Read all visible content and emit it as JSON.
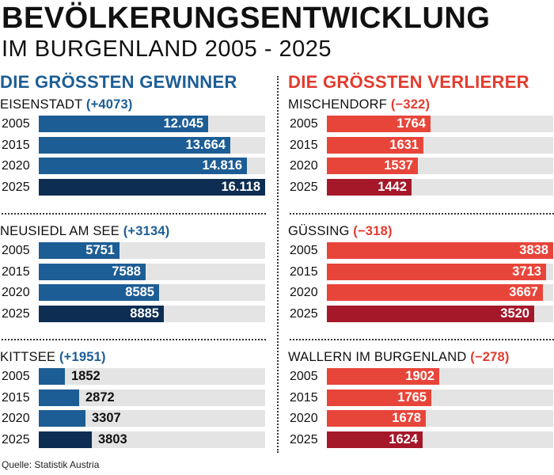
{
  "title": "BEVÖLKERUNGSENTWICKLUNG",
  "subtitle": "IM BURGENLAND 2005 - 2025",
  "source": "Quelle: Statistik Austria",
  "colors": {
    "gain_light": "#1d5d95",
    "gain_dark": "#0d2d52",
    "loss_light": "#e8453a",
    "loss_dark": "#a5182a",
    "track": "#e4e4e4"
  },
  "chart_data": [
    {
      "type": "bar",
      "panel": "left",
      "title": "DIE GRÖSSTEN GEWINNER",
      "groups": [
        {
          "name": "EISENSTADT",
          "delta": "(+4073)",
          "categories": [
            "2005",
            "2015",
            "2020",
            "2025"
          ],
          "values": [
            12045,
            13664,
            14816,
            16118
          ],
          "labels": [
            "12.045",
            "13.664",
            "14.816",
            "16.118"
          ],
          "xlim": [
            0,
            16118
          ]
        },
        {
          "name": "NEUSIEDL AM SEE",
          "delta": "(+3134)",
          "categories": [
            "2005",
            "2015",
            "2020",
            "2025"
          ],
          "values": [
            5751,
            7588,
            8585,
            8885
          ],
          "labels": [
            "5751",
            "7588",
            "8585",
            "8885"
          ],
          "xlim": [
            0,
            16118
          ]
        },
        {
          "name": "KITTSEE",
          "delta": "(+1951)",
          "categories": [
            "2005",
            "2015",
            "2020",
            "2025"
          ],
          "values": [
            1852,
            2872,
            3307,
            3803
          ],
          "labels": [
            "1852",
            "2872",
            "3307",
            "3803"
          ],
          "xlim": [
            0,
            16118
          ]
        }
      ]
    },
    {
      "type": "bar",
      "panel": "right",
      "title": "DIE GRÖSSTEN VERLIERER",
      "groups": [
        {
          "name": "MISCHENDORF",
          "delta": "(−322)",
          "categories": [
            "2005",
            "2015",
            "2020",
            "2025"
          ],
          "values": [
            1764,
            1631,
            1537,
            1442
          ],
          "labels": [
            "1764",
            "1631",
            "1537",
            "1442"
          ],
          "xlim": [
            0,
            3838
          ]
        },
        {
          "name": "GÜSSING",
          "delta": "(−318)",
          "categories": [
            "2005",
            "2015",
            "2020",
            "2025"
          ],
          "values": [
            3838,
            3713,
            3667,
            3520
          ],
          "labels": [
            "3838",
            "3713",
            "3667",
            "3520"
          ],
          "xlim": [
            0,
            3838
          ]
        },
        {
          "name": "WALLERN IM BURGENLAND",
          "delta": "(−278)",
          "categories": [
            "2005",
            "2015",
            "2020",
            "2025"
          ],
          "values": [
            1902,
            1765,
            1678,
            1624
          ],
          "labels": [
            "1902",
            "1765",
            "1678",
            "1624"
          ],
          "xlim": [
            0,
            3838
          ]
        }
      ]
    }
  ]
}
